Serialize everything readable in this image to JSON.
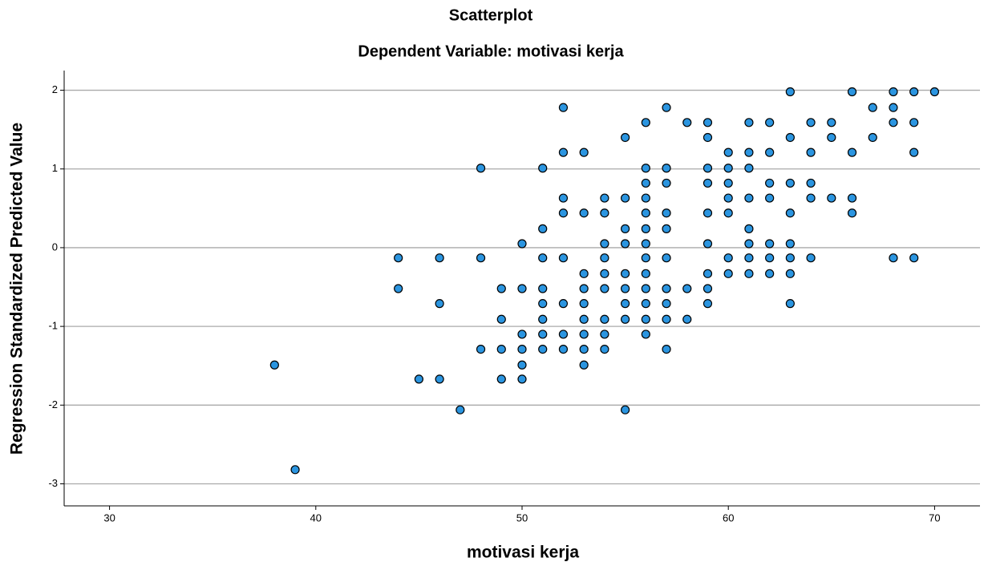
{
  "chart_data": {
    "type": "scatter",
    "title": "Scatterplot",
    "subtitle": "Dependent Variable: motivasi kerja",
    "x_label": "motivasi kerja",
    "y_label": "Regression Standardized Predicted Value",
    "color": "#2b95e0",
    "grid": true,
    "xlim": [
      27.8,
      72.2
    ],
    "xticks": [
      30,
      40,
      50,
      60,
      70
    ],
    "ylim": [
      -3.28,
      2.25
    ],
    "yticks": [
      -3,
      -2,
      -1,
      0,
      1,
      2
    ],
    "x": [
      38,
      39,
      44,
      44,
      45,
      46,
      46,
      46,
      47,
      48,
      48,
      48,
      49,
      49,
      49,
      49,
      50,
      50,
      50,
      50,
      50,
      50,
      51,
      51,
      51,
      51,
      51,
      51,
      51,
      51,
      52,
      52,
      52,
      52,
      52,
      52,
      52,
      52,
      53,
      53,
      53,
      53,
      53,
      53,
      53,
      53,
      53,
      54,
      54,
      54,
      54,
      54,
      54,
      54,
      54,
      54,
      55,
      55,
      55,
      55,
      55,
      55,
      55,
      55,
      55,
      56,
      56,
      56,
      56,
      56,
      56,
      56,
      56,
      56,
      56,
      56,
      56,
      56,
      57,
      57,
      57,
      57,
      57,
      57,
      57,
      57,
      57,
      57,
      58,
      58,
      58,
      59,
      59,
      59,
      59,
      59,
      59,
      59,
      59,
      59,
      60,
      60,
      60,
      60,
      60,
      60,
      60,
      61,
      61,
      61,
      61,
      61,
      61,
      61,
      61,
      62,
      62,
      62,
      62,
      62,
      62,
      62,
      63,
      63,
      63,
      63,
      63,
      63,
      63,
      63,
      64,
      64,
      64,
      64,
      64,
      65,
      65,
      65,
      66,
      66,
      66,
      66,
      67,
      67,
      68,
      68,
      68,
      68,
      69,
      69,
      69,
      69,
      70
    ],
    "values": [
      -1.49,
      -2.82,
      -0.13,
      -0.52,
      -1.67,
      -0.13,
      -0.71,
      -1.67,
      -2.06,
      1.01,
      -0.13,
      -1.29,
      -0.52,
      -0.91,
      -1.29,
      -1.67,
      0.05,
      -0.52,
      -1.1,
      -1.29,
      -1.49,
      -1.67,
      1.01,
      0.24,
      -0.13,
      -0.52,
      -0.71,
      -0.91,
      -1.1,
      -1.29,
      1.78,
      1.21,
      0.63,
      0.44,
      -0.13,
      -0.71,
      -1.1,
      -1.29,
      1.21,
      0.44,
      -0.33,
      -0.52,
      -0.71,
      -0.91,
      -1.1,
      -1.29,
      -1.49,
      0.63,
      0.44,
      0.05,
      -0.13,
      -0.33,
      -0.52,
      -0.91,
      -1.1,
      -1.29,
      1.4,
      0.63,
      0.24,
      0.05,
      -0.33,
      -0.52,
      -0.71,
      -0.91,
      -2.06,
      1.59,
      1.01,
      0.82,
      0.63,
      0.44,
      0.24,
      0.05,
      -0.13,
      -0.33,
      -0.52,
      -0.71,
      -0.91,
      -1.1,
      1.78,
      1.01,
      0.82,
      0.44,
      0.24,
      -0.13,
      -0.52,
      -0.71,
      -0.91,
      -1.29,
      1.59,
      -0.52,
      -0.91,
      1.59,
      1.4,
      1.01,
      0.82,
      0.44,
      0.05,
      -0.33,
      -0.52,
      -0.71,
      1.21,
      1.01,
      0.82,
      0.63,
      0.44,
      -0.13,
      -0.33,
      1.59,
      1.21,
      1.01,
      0.63,
      0.24,
      0.05,
      -0.13,
      -0.33,
      1.59,
      1.21,
      0.82,
      0.63,
      0.05,
      -0.13,
      -0.33,
      1.98,
      1.4,
      0.82,
      0.44,
      0.05,
      -0.13,
      -0.33,
      -0.71,
      1.59,
      1.21,
      0.82,
      0.63,
      -0.13,
      1.59,
      1.4,
      0.63,
      1.98,
      1.21,
      0.63,
      0.44,
      1.78,
      1.4,
      1.98,
      1.78,
      1.59,
      -0.13,
      1.98,
      1.59,
      1.21,
      -0.13,
      1.98
    ]
  }
}
